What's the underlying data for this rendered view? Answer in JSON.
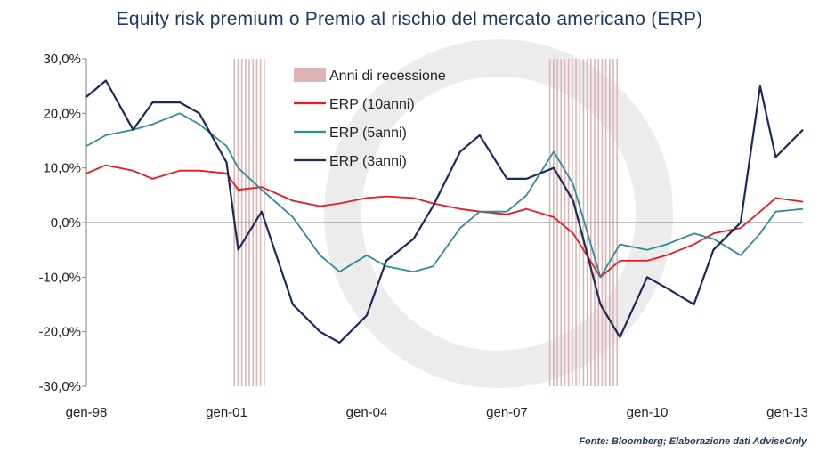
{
  "chart_data": {
    "type": "line",
    "title": "Equity risk premium o Premio al rischio del mercato americano (ERP)",
    "source": "Fonte: Bloomberg; Elaborazione dati AdviseOnly",
    "x_ticks": [
      "gen-98",
      "gen-01",
      "gen-04",
      "gen-07",
      "gen-10",
      "gen-13"
    ],
    "x_range": [
      "1998-01",
      "2013-05"
    ],
    "y_ticks": [
      "30,0%",
      "20,0%",
      "10,0%",
      "0,0%",
      "-10,0%",
      "-20,0%",
      "-30,0%"
    ],
    "ylim": [
      -30,
      30
    ],
    "y_unit": "%",
    "grid": false,
    "legend_position": "top-center",
    "recessions": {
      "name": "Anni di recessione",
      "color": "#dcb4b4",
      "periods": [
        [
          "2001-03",
          "2001-11"
        ],
        [
          "2007-12",
          "2009-06"
        ]
      ]
    },
    "series": [
      {
        "name": "ERP (10anni)",
        "color": "#e8191f",
        "points": [
          [
            "1998-01",
            9
          ],
          [
            "1998-06",
            10.5
          ],
          [
            "1999-01",
            9.5
          ],
          [
            "1999-06",
            8
          ],
          [
            "2000-01",
            9.5
          ],
          [
            "2000-06",
            9.5
          ],
          [
            "2001-01",
            9
          ],
          [
            "2001-04",
            6
          ],
          [
            "2001-10",
            6.5
          ],
          [
            "2002-06",
            4
          ],
          [
            "2003-01",
            3
          ],
          [
            "2003-06",
            3.5
          ],
          [
            "2004-01",
            4.5
          ],
          [
            "2004-06",
            4.8
          ],
          [
            "2005-01",
            4.5
          ],
          [
            "2005-06",
            3.5
          ],
          [
            "2006-01",
            2.5
          ],
          [
            "2006-06",
            2
          ],
          [
            "2007-01",
            1.5
          ],
          [
            "2007-06",
            2.5
          ],
          [
            "2008-01",
            1
          ],
          [
            "2008-06",
            -2
          ],
          [
            "2009-01",
            -10
          ],
          [
            "2009-06",
            -7
          ],
          [
            "2010-01",
            -7
          ],
          [
            "2010-06",
            -6
          ],
          [
            "2011-01",
            -4
          ],
          [
            "2011-06",
            -2
          ],
          [
            "2012-01",
            -1
          ],
          [
            "2012-06",
            2
          ],
          [
            "2012-10",
            4.5
          ],
          [
            "2013-05",
            3.8
          ]
        ]
      },
      {
        "name": "ERP (5anni)",
        "color": "#2e8b9c",
        "points": [
          [
            "1998-01",
            14
          ],
          [
            "1998-06",
            16
          ],
          [
            "1999-01",
            17
          ],
          [
            "1999-06",
            18
          ],
          [
            "2000-01",
            20
          ],
          [
            "2000-06",
            18
          ],
          [
            "2001-01",
            14
          ],
          [
            "2001-04",
            10
          ],
          [
            "2001-10",
            6
          ],
          [
            "2002-06",
            1
          ],
          [
            "2003-01",
            -6
          ],
          [
            "2003-06",
            -9
          ],
          [
            "2004-01",
            -6
          ],
          [
            "2004-06",
            -8
          ],
          [
            "2005-01",
            -9
          ],
          [
            "2005-06",
            -8
          ],
          [
            "2006-01",
            -1
          ],
          [
            "2006-06",
            2
          ],
          [
            "2007-01",
            2
          ],
          [
            "2007-06",
            5
          ],
          [
            "2008-01",
            13
          ],
          [
            "2008-06",
            7
          ],
          [
            "2009-01",
            -10
          ],
          [
            "2009-06",
            -4
          ],
          [
            "2010-01",
            -5
          ],
          [
            "2010-06",
            -4
          ],
          [
            "2011-01",
            -2
          ],
          [
            "2011-06",
            -3
          ],
          [
            "2012-01",
            -6
          ],
          [
            "2012-06",
            -2
          ],
          [
            "2012-10",
            2
          ],
          [
            "2013-05",
            2.5
          ]
        ]
      },
      {
        "name": "ERP (3anni)",
        "color": "#1c2a5a",
        "points": [
          [
            "1998-01",
            23
          ],
          [
            "1998-06",
            26
          ],
          [
            "1999-01",
            17
          ],
          [
            "1999-06",
            22
          ],
          [
            "2000-01",
            22
          ],
          [
            "2000-06",
            20
          ],
          [
            "2001-01",
            11
          ],
          [
            "2001-04",
            -5
          ],
          [
            "2001-10",
            2
          ],
          [
            "2002-06",
            -15
          ],
          [
            "2003-01",
            -20
          ],
          [
            "2003-06",
            -22
          ],
          [
            "2004-01",
            -17
          ],
          [
            "2004-06",
            -7
          ],
          [
            "2005-01",
            -3
          ],
          [
            "2005-06",
            3
          ],
          [
            "2006-01",
            13
          ],
          [
            "2006-06",
            16
          ],
          [
            "2007-01",
            8
          ],
          [
            "2007-06",
            8
          ],
          [
            "2008-01",
            10
          ],
          [
            "2008-06",
            4
          ],
          [
            "2009-01",
            -15
          ],
          [
            "2009-06",
            -21
          ],
          [
            "2010-01",
            -10
          ],
          [
            "2010-06",
            -12
          ],
          [
            "2011-01",
            -15
          ],
          [
            "2011-06",
            -5
          ],
          [
            "2012-01",
            0
          ],
          [
            "2012-06",
            25
          ],
          [
            "2012-10",
            12
          ],
          [
            "2013-05",
            17
          ]
        ]
      }
    ]
  }
}
